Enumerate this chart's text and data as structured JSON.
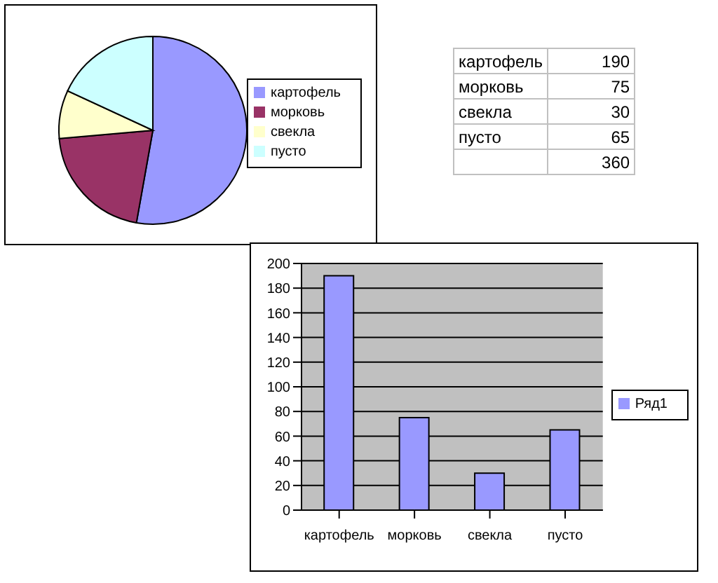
{
  "chart_data": [
    {
      "type": "pie",
      "categories": [
        "картофель",
        "морковь",
        "свекла",
        "пусто"
      ],
      "values": [
        52.8,
        20.8,
        8.3,
        18.1
      ],
      "colors": [
        "#9999ff",
        "#993366",
        "#ffffcc",
        "#ccffff"
      ],
      "legend": "right"
    },
    {
      "type": "other",
      "categories": [
        "картофель",
        "морковь",
        "свекла",
        "пусто"
      ],
      "values": [
        190,
        75,
        30,
        65
      ],
      "data_labels": true,
      "totals": [
        "360"
      ]
    },
    {
      "type": "bar",
      "categories": [
        "картофель",
        "морковь",
        "свекла",
        "пусто"
      ],
      "series": [
        {
          "name": "Ряд1",
          "color": "#9999ff",
          "values": [
            190,
            75,
            30,
            65
          ]
        }
      ],
      "ylim": [
        0,
        200
      ],
      "yticks": [
        0,
        20,
        40,
        60,
        80,
        100,
        120,
        140,
        160,
        180,
        200
      ],
      "grid": "y",
      "legend": "right"
    }
  ]
}
